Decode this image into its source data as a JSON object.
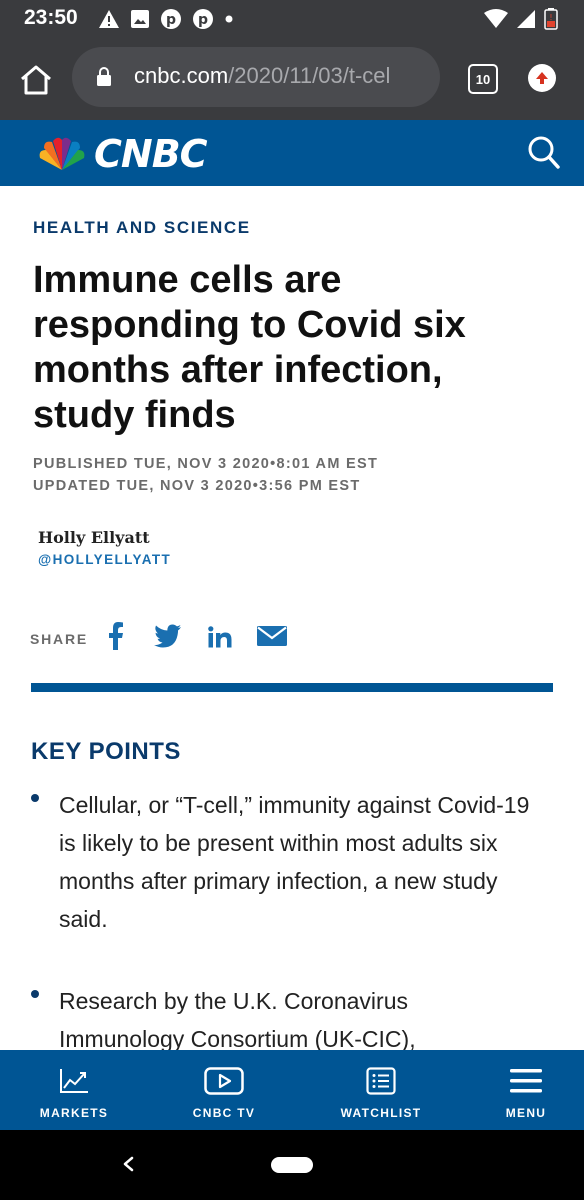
{
  "status_bar": {
    "time": "23:50"
  },
  "browser": {
    "url_domain": "cnbc.com",
    "url_path": "/2020/11/03/t-cel",
    "tab_count": "10"
  },
  "site": {
    "logo_text": "CNBC"
  },
  "article": {
    "section": "HEALTH AND SCIENCE",
    "headline": "Immune cells are responding to Covid six months after infection, study finds",
    "published": "PUBLISHED TUE, NOV 3 2020•8:01 AM EST",
    "updated": "UPDATED TUE, NOV 3 2020•3:56 PM EST",
    "author_name": "Holly Ellyatt",
    "author_handle": "@HOLLYELLYATT",
    "share_label": "SHARE",
    "key_points_title": "KEY POINTS",
    "key_points": [
      "Cellular, or “T-cell,” immunity against Covid-19 is likely to be present within most adults six months after primary infection, a new study said.",
      "Research by the U.K. Coronavirus Immunology Consortium (UK-CIC),"
    ]
  },
  "bottom_nav": [
    {
      "label": "MARKETS",
      "icon": "chart-icon"
    },
    {
      "label": "CNBC TV",
      "icon": "play-icon"
    },
    {
      "label": "WATCHLIST",
      "icon": "list-icon"
    },
    {
      "label": "MENU",
      "icon": "hamburger-icon"
    }
  ],
  "colors": {
    "brand_blue": "#005594",
    "dark_navy": "#0a3a6b",
    "chrome_bg": "#3a3b3e"
  }
}
